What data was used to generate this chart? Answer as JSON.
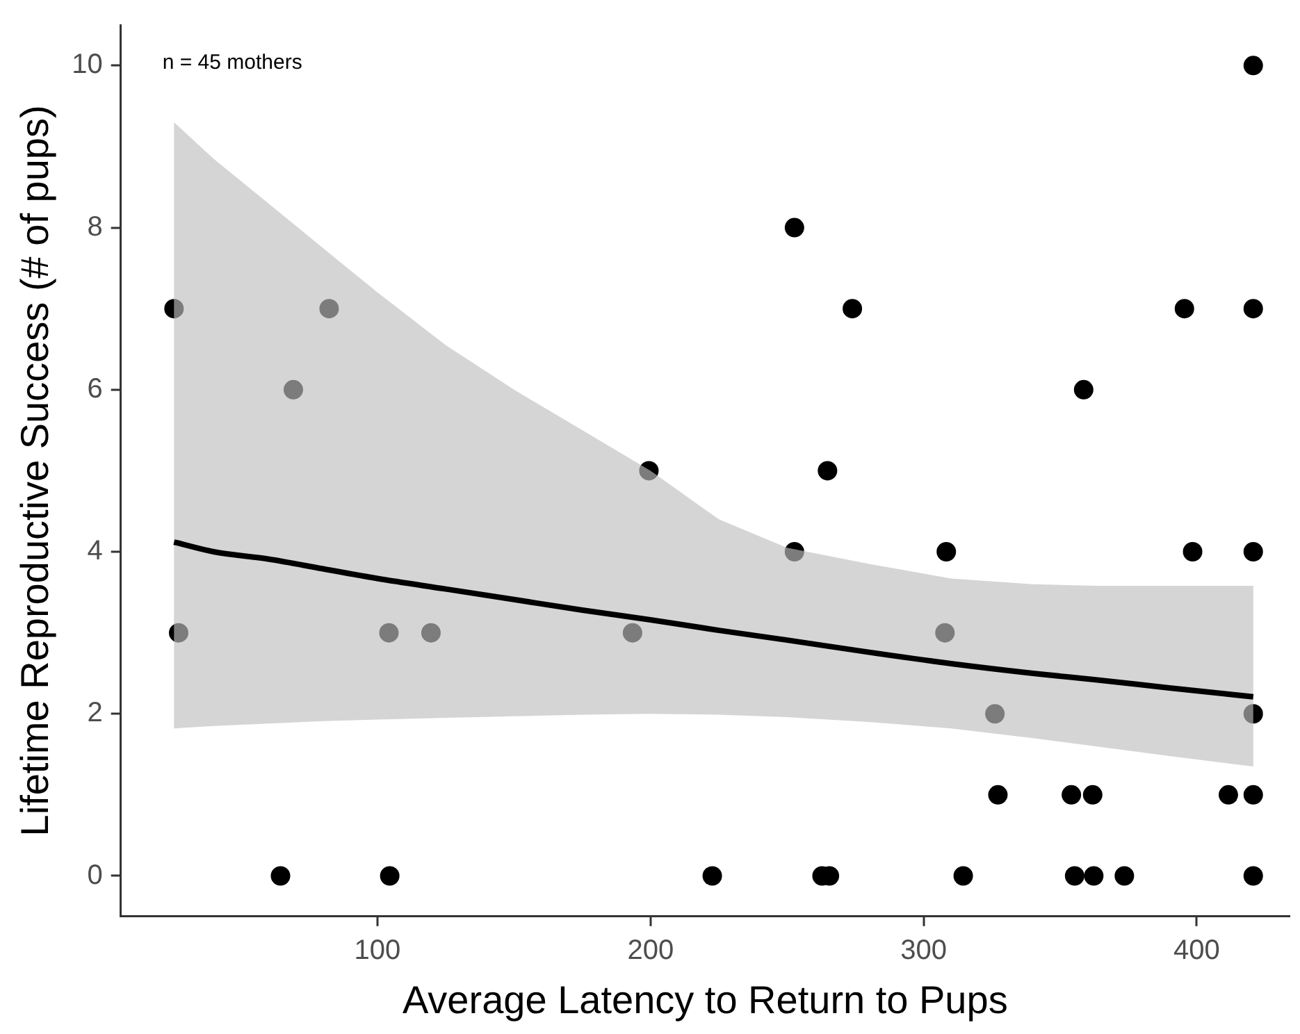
{
  "chart_data": {
    "type": "scatter",
    "xlabel": "Average Latency to Return to Pups",
    "ylabel": "Lifetime Reproductive Success (# of pups)",
    "annotations": [
      "n = 45 mothers"
    ],
    "xlim": [
      6,
      434
    ],
    "ylim": [
      -0.5,
      10.5
    ],
    "xticks": [
      100,
      200,
      300,
      400
    ],
    "yticks": [
      0,
      2,
      4,
      6,
      8,
      10
    ],
    "grid": false,
    "legend": false,
    "marker": "circle",
    "series": [
      {
        "color": "#000000",
        "x": [
          25.5,
          27.2,
          82.3,
          69.2,
          104.2,
          119.6,
          193.4,
          199.4,
          64.5,
          104.5,
          252.7,
          273.9,
          395.5,
          420.7,
          358.6,
          264.8,
          252.7,
          308.3,
          398.5,
          420.7,
          307.8,
          326.1,
          420.7,
          327.2,
          354.1,
          361.9,
          411.6,
          420.7,
          222.6,
          262.8,
          265.5,
          314.5,
          355.3,
          362.3,
          373.5,
          420.7,
          420.7
        ],
        "values": [
          7,
          3,
          7,
          6,
          3,
          3,
          3,
          5,
          0,
          0,
          8,
          7,
          7,
          7,
          6,
          5,
          4,
          4,
          4,
          4,
          3,
          2,
          2,
          1,
          1,
          1,
          1,
          1,
          0,
          0,
          0,
          0,
          0,
          0,
          0,
          0,
          10
        ]
      },
      {
        "type": "line",
        "color": "#000000",
        "line_style": "solid",
        "marker": "none",
        "x": [
          25.5,
          40,
          60,
          80,
          100,
          125,
          150,
          175,
          200,
          225,
          250,
          280,
          310,
          340,
          363,
          390,
          420.7
        ],
        "values": [
          4.12,
          4.0,
          3.91,
          3.79,
          3.67,
          3.54,
          3.41,
          3.28,
          3.16,
          3.03,
          2.91,
          2.76,
          2.62,
          2.5,
          2.42,
          2.32,
          2.21
        ],
        "lower": [
          1.82,
          1.85,
          1.88,
          1.91,
          1.93,
          1.95,
          1.97,
          1.99,
          2.0,
          1.99,
          1.96,
          1.9,
          1.82,
          1.7,
          1.6,
          1.48,
          1.35
        ],
        "upper": [
          9.3,
          8.85,
          8.3,
          7.75,
          7.2,
          6.55,
          6.0,
          5.5,
          5.0,
          4.4,
          4.05,
          3.85,
          3.67,
          3.6,
          3.58,
          3.58,
          3.58
        ]
      }
    ]
  }
}
